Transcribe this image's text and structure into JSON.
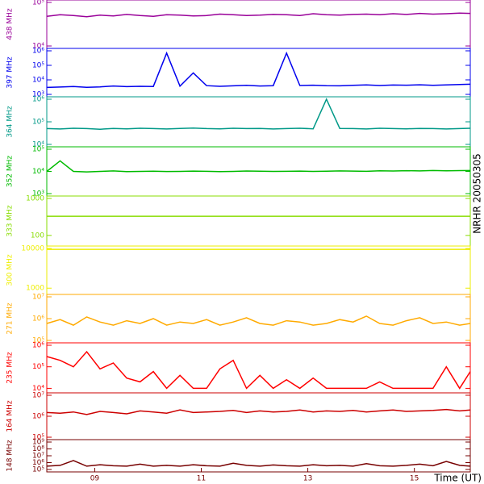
{
  "side_label": "NRHR 20050305",
  "chart_data": [
    {
      "type": "line",
      "ylabel": "438 MHz",
      "color": "#990099",
      "log_scale": true,
      "xlim": [
        8.1,
        16.05
      ],
      "ylim": [
        10000,
        100000
      ],
      "yticks": [
        {
          "value": 10000,
          "label": "10⁴"
        },
        {
          "value": 100000,
          "label": "10⁵"
        }
      ],
      "x": [
        8.1,
        8.35,
        8.6,
        8.85,
        9.1,
        9.35,
        9.6,
        9.85,
        10.1,
        10.35,
        10.6,
        10.85,
        11.1,
        11.35,
        11.6,
        11.85,
        12.1,
        12.35,
        12.6,
        12.85,
        13.1,
        13.35,
        13.6,
        13.85,
        14.1,
        14.35,
        14.6,
        14.85,
        15.1,
        15.35,
        15.6,
        15.85,
        16.05
      ],
      "values": [
        48000,
        52000,
        50000,
        47000,
        51000,
        49000,
        53000,
        50000,
        48000,
        52000,
        51000,
        49000,
        50000,
        54000,
        52000,
        50000,
        51000,
        53000,
        52000,
        50000,
        55000,
        52000,
        51000,
        53000,
        54000,
        52000,
        55000,
        53000,
        56000,
        54000,
        55000,
        57000,
        56000
      ]
    },
    {
      "type": "line",
      "ylabel": "397 MHz",
      "color": "#0000ee",
      "log_scale": true,
      "xlim": [
        8.1,
        16.05
      ],
      "ylim": [
        1000,
        1000000
      ],
      "yticks": [
        {
          "value": 1000,
          "label": "10³"
        },
        {
          "value": 10000,
          "label": "10⁴"
        },
        {
          "value": 100000,
          "label": "10⁵"
        },
        {
          "value": 1000000,
          "label": "10⁶"
        }
      ],
      "x": [
        8.1,
        8.35,
        8.6,
        8.85,
        9.1,
        9.35,
        9.6,
        9.85,
        10.1,
        10.35,
        10.6,
        10.85,
        11.1,
        11.35,
        11.6,
        11.85,
        12.1,
        12.35,
        12.6,
        12.85,
        13.1,
        13.35,
        13.6,
        13.85,
        14.1,
        14.35,
        14.6,
        14.85,
        15.1,
        15.35,
        15.6,
        15.85,
        16.05
      ],
      "values": [
        3000,
        3200,
        3500,
        3100,
        3300,
        3800,
        3400,
        3600,
        3500,
        700000,
        3700,
        30000,
        4000,
        3600,
        3900,
        4200,
        3800,
        4000,
        700000,
        4100,
        4300,
        4000,
        3900,
        4200,
        4500,
        4100,
        4400,
        4300,
        4600,
        4200,
        4500,
        4800,
        5000
      ]
    },
    {
      "type": "line",
      "ylabel": "364 MHz",
      "color": "#009988",
      "log_scale": true,
      "xlim": [
        8.1,
        16.05
      ],
      "ylim": [
        10000,
        1000000
      ],
      "yticks": [
        {
          "value": 10000,
          "label": "10⁴"
        },
        {
          "value": 100000,
          "label": "10⁵"
        },
        {
          "value": 1000000,
          "label": "10⁶"
        }
      ],
      "x": [
        8.1,
        8.35,
        8.6,
        8.85,
        9.1,
        9.35,
        9.6,
        9.85,
        10.1,
        10.35,
        10.6,
        10.85,
        11.1,
        11.35,
        11.6,
        11.85,
        12.1,
        12.35,
        12.6,
        12.85,
        13.1,
        13.35,
        13.6,
        13.85,
        14.1,
        14.35,
        14.6,
        14.85,
        15.1,
        15.35,
        15.6,
        15.85,
        16.05
      ],
      "values": [
        50000,
        48000,
        52000,
        50000,
        47000,
        51000,
        49000,
        52000,
        50000,
        48000,
        51000,
        53000,
        50000,
        49000,
        52000,
        50000,
        51000,
        48000,
        50000,
        52000,
        49000,
        1000000,
        51000,
        50000,
        48000,
        52000,
        50000,
        49000,
        51000,
        50000,
        48000,
        50000,
        52000
      ]
    },
    {
      "type": "line",
      "ylabel": "352 MHz",
      "color": "#00bb00",
      "log_scale": true,
      "xlim": [
        8.1,
        16.05
      ],
      "ylim": [
        1000,
        100000
      ],
      "yticks": [
        {
          "value": 1000,
          "label": "10³"
        },
        {
          "value": 10000,
          "label": "10⁴"
        },
        {
          "value": 100000,
          "label": "10⁵"
        }
      ],
      "x": [
        8.1,
        8.35,
        8.6,
        8.85,
        9.1,
        9.35,
        9.6,
        9.85,
        10.1,
        10.35,
        10.6,
        10.85,
        11.1,
        11.35,
        11.6,
        11.85,
        12.1,
        12.35,
        12.6,
        12.85,
        13.1,
        13.35,
        13.6,
        13.85,
        14.1,
        14.35,
        14.6,
        14.85,
        15.1,
        15.35,
        15.6,
        15.85,
        16.05
      ],
      "values": [
        10000,
        30000,
        10000,
        9500,
        10000,
        10500,
        9800,
        10000,
        10200,
        9900,
        10000,
        10300,
        10100,
        9800,
        10000,
        10400,
        10200,
        10000,
        10100,
        10300,
        10000,
        10200,
        10500,
        10300,
        10100,
        10600,
        10400,
        10800,
        10500,
        11000,
        10700,
        10900,
        11000
      ]
    },
    {
      "type": "line",
      "ylabel": "333 MHz",
      "color": "#88dd00",
      "log_scale": true,
      "xlim": [
        8.1,
        16.05
      ],
      "ylim": [
        60,
        1000
      ],
      "yticks": [
        100,
        1000
      ],
      "x": [
        8.1,
        8.35,
        8.6,
        8.85,
        9.1,
        9.35,
        9.6,
        9.85,
        10.1,
        10.35,
        10.6,
        10.85,
        11.1,
        11.35,
        11.6,
        11.85,
        12.1,
        12.35,
        12.6,
        12.85,
        13.1,
        13.35,
        13.6,
        13.85,
        14.1,
        14.35,
        14.6,
        14.85,
        15.1,
        15.35,
        15.6,
        15.85,
        16.05
      ],
      "values": [
        330,
        330,
        330,
        330,
        330,
        330,
        330,
        330,
        330,
        330,
        330,
        330,
        330,
        330,
        330,
        330,
        330,
        330,
        330,
        330,
        330,
        330,
        330,
        330,
        330,
        330,
        330,
        330,
        330,
        330,
        330,
        330,
        330
      ]
    },
    {
      "type": "line",
      "ylabel": "300 MHz",
      "color": "#eeee00",
      "log_scale": true,
      "xlim": [
        8.1,
        16.05
      ],
      "ylim": [
        800,
        10000
      ],
      "yticks": [
        1000,
        10000
      ],
      "x": [
        8.1,
        8.35,
        8.6,
        8.85,
        9.1,
        9.35,
        9.6,
        9.85,
        10.1,
        10.35,
        10.6,
        10.85,
        11.1,
        11.35,
        11.6,
        11.85,
        12.1,
        12.35,
        12.6,
        12.85,
        13.1,
        13.35,
        13.6,
        13.85,
        14.1,
        14.35,
        14.6,
        14.85,
        15.1,
        15.35,
        15.6,
        15.85,
        16.05
      ],
      "values": [
        9500,
        9500,
        9500,
        9500,
        9500,
        9500,
        9500,
        9500,
        9500,
        9500,
        9500,
        9500,
        9500,
        9500,
        9500,
        9500,
        9500,
        9500,
        9500,
        9500,
        9500,
        9500,
        9500,
        9500,
        9500,
        9500,
        9500,
        9500,
        9500,
        9500,
        9500,
        9500,
        9500
      ]
    },
    {
      "type": "line",
      "ylabel": "271 MHz",
      "color": "#ffaa00",
      "log_scale": true,
      "xlim": [
        8.1,
        16.05
      ],
      "ylim": [
        100000,
        10000000
      ],
      "yticks": [
        {
          "value": 100000,
          "label": "10⁵"
        },
        {
          "value": 1000000,
          "label": "10⁶"
        },
        {
          "value": 10000000,
          "label": "10⁷"
        }
      ],
      "x": [
        8.1,
        8.35,
        8.6,
        8.85,
        9.1,
        9.35,
        9.6,
        9.85,
        10.1,
        10.35,
        10.6,
        10.85,
        11.1,
        11.35,
        11.6,
        11.85,
        12.1,
        12.35,
        12.6,
        12.85,
        13.1,
        13.35,
        13.6,
        13.85,
        14.1,
        14.35,
        14.6,
        14.85,
        15.1,
        15.35,
        15.6,
        15.85,
        16.05
      ],
      "values": [
        600000,
        900000,
        500000,
        1200000,
        700000,
        500000,
        800000,
        600000,
        1000000,
        500000,
        700000,
        600000,
        900000,
        500000,
        700000,
        1100000,
        600000,
        500000,
        800000,
        700000,
        500000,
        600000,
        900000,
        700000,
        1300000,
        600000,
        500000,
        800000,
        1100000,
        600000,
        700000,
        500000,
        600000
      ]
    },
    {
      "type": "line",
      "ylabel": "235 MHz",
      "color": "#ff0000",
      "log_scale": true,
      "xlim": [
        8.1,
        16.05
      ],
      "ylim": [
        8000,
        1000000
      ],
      "yticks": [
        {
          "value": 10000,
          "label": "10⁴"
        },
        {
          "value": 100000,
          "label": "10⁵"
        },
        {
          "value": 1000000,
          "label": "10⁶"
        }
      ],
      "x": [
        8.1,
        8.35,
        8.6,
        8.85,
        9.1,
        9.35,
        9.6,
        9.85,
        10.1,
        10.35,
        10.6,
        10.85,
        11.1,
        11.35,
        11.6,
        11.85,
        12.1,
        12.35,
        12.6,
        12.85,
        13.1,
        13.35,
        13.6,
        13.85,
        14.1,
        14.35,
        14.6,
        14.85,
        15.1,
        15.35,
        15.6,
        15.85,
        16.05
      ],
      "values": [
        300000,
        200000,
        100000,
        500000,
        80000,
        150000,
        30000,
        20000,
        60000,
        10000,
        40000,
        10000,
        10000,
        80000,
        200000,
        10000,
        40000,
        10000,
        25000,
        10000,
        30000,
        10000,
        10000,
        10000,
        10000,
        20000,
        10000,
        10000,
        10000,
        10000,
        100000,
        10000,
        60000
      ]
    },
    {
      "type": "line",
      "ylabel": "164 MHz",
      "color": "#cc0000",
      "log_scale": true,
      "xlim": [
        8.1,
        16.05
      ],
      "ylim": [
        100000,
        10000000
      ],
      "yticks": [
        {
          "value": 100000,
          "label": "10⁵"
        },
        {
          "value": 1000000,
          "label": "10⁶"
        },
        {
          "value": 10000000,
          "label": "10⁷"
        }
      ],
      "x": [
        8.1,
        8.35,
        8.6,
        8.85,
        9.1,
        9.35,
        9.6,
        9.85,
        10.1,
        10.35,
        10.6,
        10.85,
        11.1,
        11.35,
        11.6,
        11.85,
        12.1,
        12.35,
        12.6,
        12.85,
        13.1,
        13.35,
        13.6,
        13.85,
        14.1,
        14.35,
        14.6,
        14.85,
        15.1,
        15.35,
        15.6,
        15.85,
        16.05
      ],
      "values": [
        1500000,
        1400000,
        1600000,
        1200000,
        1700000,
        1500000,
        1300000,
        1800000,
        1600000,
        1400000,
        2000000,
        1500000,
        1600000,
        1700000,
        1900000,
        1500000,
        1800000,
        1600000,
        1700000,
        2000000,
        1600000,
        1800000,
        1700000,
        1900000,
        1600000,
        1800000,
        2000000,
        1700000,
        1800000,
        1900000,
        2100000,
        1800000,
        2000000
      ]
    },
    {
      "type": "line",
      "ylabel": "148 MHz",
      "color": "#770000",
      "log_scale": true,
      "xlim": [
        8.1,
        16.05
      ],
      "ylim": [
        100000,
        1000000000
      ],
      "yticks": [
        {
          "value": 100000,
          "label": "10⁵"
        },
        {
          "value": 1000000,
          "label": "10⁶"
        },
        {
          "value": 10000000,
          "label": "10⁷"
        },
        {
          "value": 100000000,
          "label": "10⁸"
        },
        {
          "value": 1000000000,
          "label": "10⁹"
        }
      ],
      "xticks": [
        {
          "value": 9,
          "label": "09"
        },
        11,
        13,
        15
      ],
      "xlabel": "Time (UT)",
      "x": [
        8.1,
        8.35,
        8.6,
        8.85,
        9.1,
        9.35,
        9.6,
        9.85,
        10.1,
        10.35,
        10.6,
        10.85,
        11.1,
        11.35,
        11.6,
        11.85,
        12.1,
        12.35,
        12.6,
        12.85,
        13.1,
        13.35,
        13.6,
        13.85,
        14.1,
        14.35,
        14.6,
        14.85,
        15.1,
        15.35,
        15.6,
        15.85,
        16.05
      ],
      "values": [
        300000,
        400000,
        2000000,
        300000,
        500000,
        350000,
        300000,
        600000,
        300000,
        400000,
        300000,
        500000,
        350000,
        300000,
        800000,
        400000,
        300000,
        450000,
        350000,
        300000,
        500000,
        350000,
        400000,
        300000,
        700000,
        350000,
        300000,
        400000,
        600000,
        350000,
        1500000,
        400000,
        300000
      ]
    }
  ]
}
